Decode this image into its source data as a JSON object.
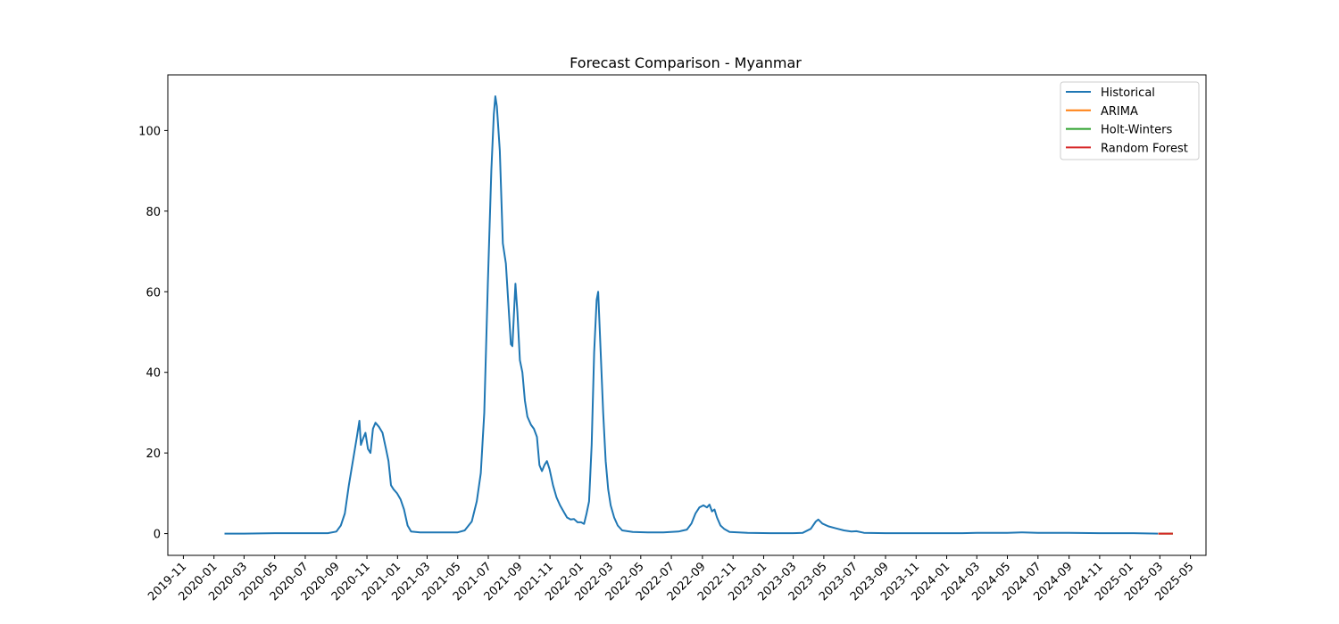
{
  "chart_data": {
    "type": "line",
    "title": "Forecast Comparison - Myanmar",
    "xlabel": "",
    "ylabel": "",
    "x_axis_type": "date",
    "xlim": [
      "2019-10-01",
      "2025-06-01"
    ],
    "ylim": [
      -5.4,
      113.8
    ],
    "x_ticks": [
      "2019-11",
      "2020-01",
      "2020-03",
      "2020-05",
      "2020-07",
      "2020-09",
      "2020-11",
      "2021-01",
      "2021-03",
      "2021-05",
      "2021-07",
      "2021-09",
      "2021-11",
      "2022-01",
      "2022-03",
      "2022-05",
      "2022-07",
      "2022-09",
      "2022-11",
      "2023-01",
      "2023-03",
      "2023-05",
      "2023-07",
      "2023-09",
      "2023-11",
      "2024-01",
      "2024-03",
      "2024-05",
      "2024-07",
      "2024-09",
      "2024-11",
      "2025-01",
      "2025-03",
      "2025-05"
    ],
    "y_ticks": [
      0,
      20,
      40,
      60,
      80,
      100
    ],
    "grid": false,
    "legend_position": "top-right",
    "series": [
      {
        "name": "Historical",
        "color": "#1f77b4",
        "points": [
          [
            "2020-01-22",
            0
          ],
          [
            "2020-03-01",
            0
          ],
          [
            "2020-05-01",
            0.1
          ],
          [
            "2020-07-01",
            0.1
          ],
          [
            "2020-08-15",
            0.1
          ],
          [
            "2020-09-01",
            0.5
          ],
          [
            "2020-09-10",
            2
          ],
          [
            "2020-09-18",
            5
          ],
          [
            "2020-09-26",
            12
          ],
          [
            "2020-10-04",
            18
          ],
          [
            "2020-10-12",
            24
          ],
          [
            "2020-10-17",
            28
          ],
          [
            "2020-10-20",
            22
          ],
          [
            "2020-10-24",
            23.5
          ],
          [
            "2020-10-29",
            25
          ],
          [
            "2020-11-03",
            21
          ],
          [
            "2020-11-08",
            20
          ],
          [
            "2020-11-13",
            26
          ],
          [
            "2020-11-18",
            27.5
          ],
          [
            "2020-11-25",
            26.5
          ],
          [
            "2020-12-02",
            25
          ],
          [
            "2020-12-09",
            21
          ],
          [
            "2020-12-14",
            18
          ],
          [
            "2020-12-19",
            12
          ],
          [
            "2020-12-24",
            11
          ],
          [
            "2020-12-31",
            10
          ],
          [
            "2021-01-07",
            8.5
          ],
          [
            "2021-01-14",
            6
          ],
          [
            "2021-01-21",
            2
          ],
          [
            "2021-01-28",
            0.5
          ],
          [
            "2021-02-15",
            0.3
          ],
          [
            "2021-03-15",
            0.3
          ],
          [
            "2021-04-15",
            0.3
          ],
          [
            "2021-05-01",
            0.3
          ],
          [
            "2021-05-15",
            0.8
          ],
          [
            "2021-05-29",
            3
          ],
          [
            "2021-06-08",
            8
          ],
          [
            "2021-06-16",
            15
          ],
          [
            "2021-06-23",
            30
          ],
          [
            "2021-06-30",
            62
          ],
          [
            "2021-07-07",
            90
          ],
          [
            "2021-07-12",
            104
          ],
          [
            "2021-07-15",
            108.5
          ],
          [
            "2021-07-18",
            106
          ],
          [
            "2021-07-24",
            95
          ],
          [
            "2021-07-30",
            72
          ],
          [
            "2021-08-05",
            67
          ],
          [
            "2021-08-10",
            57
          ],
          [
            "2021-08-15",
            47
          ],
          [
            "2021-08-18",
            46.5
          ],
          [
            "2021-08-24",
            62
          ],
          [
            "2021-08-28",
            55
          ],
          [
            "2021-09-02",
            43
          ],
          [
            "2021-09-07",
            40
          ],
          [
            "2021-09-12",
            33
          ],
          [
            "2021-09-17",
            29
          ],
          [
            "2021-09-24",
            27
          ],
          [
            "2021-09-30",
            26
          ],
          [
            "2021-10-06",
            24
          ],
          [
            "2021-10-11",
            17
          ],
          [
            "2021-10-16",
            15.5
          ],
          [
            "2021-10-21",
            17
          ],
          [
            "2021-10-26",
            18
          ],
          [
            "2021-10-31",
            16
          ],
          [
            "2021-11-07",
            12
          ],
          [
            "2021-11-14",
            9
          ],
          [
            "2021-11-21",
            7
          ],
          [
            "2021-11-28",
            5.5
          ],
          [
            "2021-12-05",
            4
          ],
          [
            "2021-12-12",
            3.5
          ],
          [
            "2021-12-19",
            3.6
          ],
          [
            "2021-12-26",
            2.8
          ],
          [
            "2022-01-02",
            2.8
          ],
          [
            "2022-01-08",
            2.4
          ],
          [
            "2022-01-13",
            5
          ],
          [
            "2022-01-18",
            8
          ],
          [
            "2022-01-23",
            22
          ],
          [
            "2022-01-28",
            45
          ],
          [
            "2022-02-02",
            58
          ],
          [
            "2022-02-05",
            60
          ],
          [
            "2022-02-10",
            45
          ],
          [
            "2022-02-15",
            30
          ],
          [
            "2022-02-20",
            18
          ],
          [
            "2022-02-25",
            11
          ],
          [
            "2022-03-02",
            7
          ],
          [
            "2022-03-09",
            4
          ],
          [
            "2022-03-16",
            2
          ],
          [
            "2022-03-25",
            0.8
          ],
          [
            "2022-04-15",
            0.4
          ],
          [
            "2022-05-15",
            0.3
          ],
          [
            "2022-06-15",
            0.3
          ],
          [
            "2022-07-15",
            0.5
          ],
          [
            "2022-08-01",
            1
          ],
          [
            "2022-08-10",
            2.5
          ],
          [
            "2022-08-18",
            5
          ],
          [
            "2022-08-26",
            6.5
          ],
          [
            "2022-09-03",
            7
          ],
          [
            "2022-09-10",
            6.5
          ],
          [
            "2022-09-15",
            7.2
          ],
          [
            "2022-09-20",
            5.5
          ],
          [
            "2022-09-25",
            6
          ],
          [
            "2022-09-30",
            4
          ],
          [
            "2022-10-07",
            2
          ],
          [
            "2022-10-14",
            1.2
          ],
          [
            "2022-10-25",
            0.4
          ],
          [
            "2022-11-30",
            0.2
          ],
          [
            "2023-01-15",
            0.1
          ],
          [
            "2023-03-01",
            0.1
          ],
          [
            "2023-03-20",
            0.2
          ],
          [
            "2023-04-05",
            1.2
          ],
          [
            "2023-04-15",
            3
          ],
          [
            "2023-04-20",
            3.5
          ],
          [
            "2023-04-28",
            2.5
          ],
          [
            "2023-05-10",
            1.8
          ],
          [
            "2023-05-25",
            1.3
          ],
          [
            "2023-06-10",
            0.8
          ],
          [
            "2023-06-25",
            0.5
          ],
          [
            "2023-07-05",
            0.6
          ],
          [
            "2023-07-20",
            0.2
          ],
          [
            "2023-09-01",
            0.1
          ],
          [
            "2023-11-01",
            0.1
          ],
          [
            "2024-01-01",
            0.1
          ],
          [
            "2024-02-01",
            0.1
          ],
          [
            "2024-03-01",
            0.2
          ],
          [
            "2024-05-01",
            0.2
          ],
          [
            "2024-06-01",
            0.3
          ],
          [
            "2024-07-01",
            0.2
          ],
          [
            "2024-09-01",
            0.2
          ],
          [
            "2024-11-01",
            0.1
          ],
          [
            "2025-01-01",
            0.1
          ],
          [
            "2025-02-25",
            0
          ]
        ]
      },
      {
        "name": "ARIMA",
        "color": "#ff7f0e",
        "points": [
          [
            "2025-02-26",
            0
          ],
          [
            "2025-03-27",
            0
          ]
        ]
      },
      {
        "name": "Holt-Winters",
        "color": "#2ca02c",
        "points": [
          [
            "2025-02-26",
            0
          ],
          [
            "2025-03-27",
            0
          ]
        ]
      },
      {
        "name": "Random Forest",
        "color": "#d62728",
        "points": [
          [
            "2025-02-26",
            0
          ],
          [
            "2025-03-27",
            0
          ]
        ]
      }
    ]
  }
}
